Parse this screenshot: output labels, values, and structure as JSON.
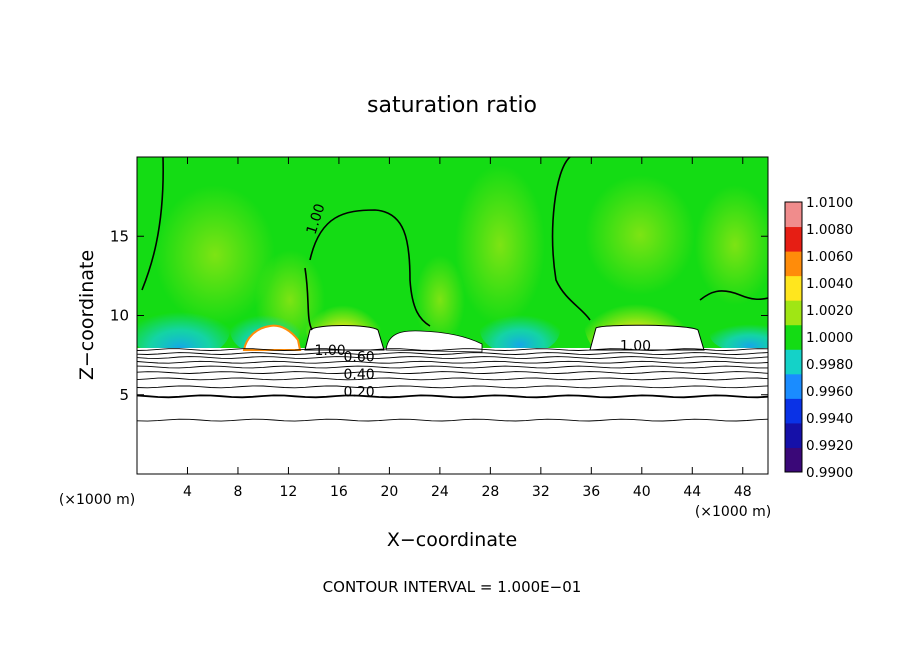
{
  "chart_data": {
    "type": "heatmap",
    "title": "saturation ratio",
    "xlabel": "X−coordinate",
    "ylabel": "Z−coordinate",
    "x_units_label": "(×1000 m)",
    "y_units_label": "(×1000 m)",
    "footer": "CONTOUR INTERVAL = 1.000E−01",
    "xlim": [
      0,
      50
    ],
    "ylim": [
      0,
      20
    ],
    "x_ticks": [
      4,
      8,
      12,
      16,
      20,
      24,
      28,
      32,
      36,
      40,
      44,
      48
    ],
    "x_tick_labels": [
      "4",
      "8",
      "12",
      "16",
      "20",
      "24",
      "28",
      "32",
      "36",
      "40",
      "44",
      "48"
    ],
    "y_ticks": [
      5,
      10,
      15
    ],
    "y_tick_labels": [
      "5",
      "10",
      "15"
    ],
    "colorbar": {
      "levels": [
        0.99,
        0.992,
        0.994,
        0.996,
        0.998,
        1.0,
        1.002,
        1.004,
        1.006,
        1.008,
        1.01
      ],
      "labels": [
        "0.9900",
        "0.9920",
        "0.9940",
        "0.9960",
        "0.9980",
        "1.0000",
        "1.0020",
        "1.0040",
        "1.0060",
        "1.0080",
        "1.0100"
      ],
      "colors": [
        "#3a0878",
        "#1510a8",
        "#0a32e6",
        "#1a8cff",
        "#14d2c8",
        "#14dc14",
        "#a0e614",
        "#ffe61e",
        "#ff8c0a",
        "#e61e14",
        "#f08c8c"
      ]
    },
    "contour_labels": [
      {
        "text": "1.00",
        "x": 14.5,
        "y": 16.0,
        "rot": -72
      },
      {
        "text": "1.00",
        "x": 39.5,
        "y": 7.8,
        "rot": 0
      },
      {
        "text": "1.00",
        "x": 15.3,
        "y": 7.5,
        "rot": 0
      },
      {
        "text": "0.60",
        "x": 17.6,
        "y": 7.1,
        "rot": 0
      },
      {
        "text": "0.40",
        "x": 17.6,
        "y": 6.0,
        "rot": 0
      },
      {
        "text": "0.20",
        "x": 17.6,
        "y": 4.9,
        "rot": 0
      }
    ],
    "stable_contour_heights": [
      7.85,
      7.6,
      7.35,
      7.05,
      6.75,
      6.4,
      6.0,
      5.5,
      4.9,
      3.4
    ],
    "heavy_contour_heights": [
      4.9
    ]
  }
}
